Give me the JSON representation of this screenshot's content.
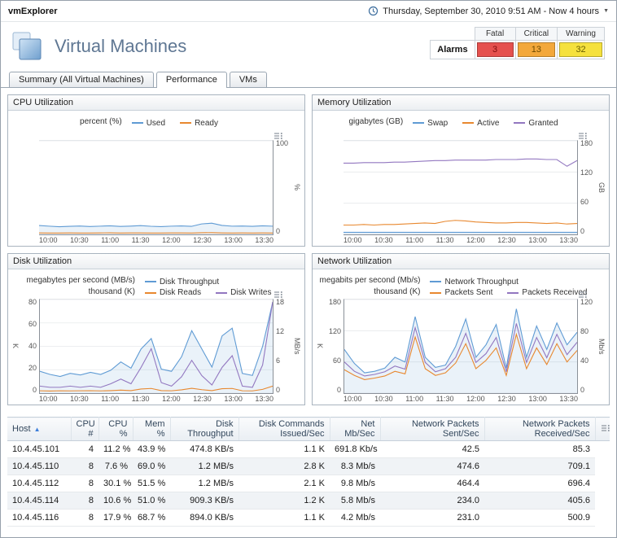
{
  "app": {
    "title": "vmExplorer"
  },
  "timebar": {
    "range_label": "Thursday, September 30, 2010 9:51 AM - Now 4 hours"
  },
  "page": {
    "title": "Virtual Machines"
  },
  "alarms": {
    "label": "Alarms",
    "columns": [
      {
        "name": "Fatal",
        "count": "3",
        "bg": "#e5514e",
        "fg": "#7e0d0d"
      },
      {
        "name": "Critical",
        "count": "13",
        "bg": "#f3a83b",
        "fg": "#6d4a00"
      },
      {
        "name": "Warning",
        "count": "32",
        "bg": "#f5e13d",
        "fg": "#6b6000"
      }
    ]
  },
  "tabs": [
    {
      "label": "Summary (All Virtual Machines)",
      "active": false
    },
    {
      "label": "Performance",
      "active": true
    },
    {
      "label": "VMs",
      "active": false
    }
  ],
  "chart_data": [
    {
      "type": "line",
      "title": "CPU Utilization",
      "legend_rows": [
        {
          "unit": "percent (%)",
          "entries": [
            {
              "label": "Used",
              "color": "#5f9bd4"
            },
            {
              "label": "Ready",
              "color": "#e8882f"
            }
          ]
        }
      ],
      "x_ticks": [
        "10:00",
        "10:30",
        "11:00",
        "11:30",
        "12:00",
        "12:30",
        "13:00",
        "13:30"
      ],
      "axes": {
        "right": {
          "label": "%",
          "range": [
            0,
            100
          ],
          "ticks": [
            0,
            100
          ]
        }
      },
      "series": [
        {
          "name": "Used",
          "color": "#5f9bd4",
          "axis": "right",
          "fill": true,
          "values": [
            9.5,
            8.8,
            8.2,
            8.6,
            9.0,
            8.4,
            8.8,
            9.2,
            8.5,
            8.9,
            9.4,
            8.7,
            8.3,
            8.8,
            9.1,
            8.6,
            11.2,
            12.0,
            9.6,
            8.8,
            9.0,
            8.6,
            9.2,
            8.8
          ]
        },
        {
          "name": "Ready",
          "color": "#e8882f",
          "axis": "right",
          "values": [
            1.6,
            1.5,
            1.5,
            1.6,
            1.5,
            1.5,
            1.6,
            1.7,
            1.5,
            1.6,
            1.6,
            1.5,
            1.5,
            1.6,
            1.6,
            1.5,
            1.8,
            1.9,
            1.6,
            1.5,
            1.6,
            1.5,
            1.6,
            1.5
          ]
        }
      ]
    },
    {
      "type": "line",
      "title": "Memory Utilization",
      "legend_rows": [
        {
          "unit": "gigabytes (GB)",
          "entries": [
            {
              "label": "Swap",
              "color": "#5f9bd4"
            },
            {
              "label": "Active",
              "color": "#e8882f"
            },
            {
              "label": "Granted",
              "color": "#9277c0"
            }
          ]
        }
      ],
      "x_ticks": [
        "10:00",
        "10:30",
        "11:00",
        "11:30",
        "12:00",
        "12:30",
        "13:00",
        "13:30"
      ],
      "axes": {
        "right": {
          "label": "GB",
          "range": [
            0,
            180
          ],
          "ticks": [
            0,
            60,
            120,
            180
          ]
        }
      },
      "series": [
        {
          "name": "Swap",
          "color": "#5f9bd4",
          "axis": "right",
          "fill": true,
          "values": [
            4,
            4,
            4,
            4,
            4,
            4,
            4,
            4,
            4,
            4,
            4,
            4,
            4,
            4,
            4,
            4,
            4,
            4,
            4,
            4,
            4,
            4,
            4,
            4
          ]
        },
        {
          "name": "Active",
          "color": "#e8882f",
          "axis": "right",
          "values": [
            18,
            18,
            19,
            18,
            19,
            19,
            20,
            21,
            22,
            21,
            25,
            27,
            26,
            24,
            23,
            22,
            22,
            23,
            23,
            22,
            21,
            22,
            20,
            21
          ]
        },
        {
          "name": "Granted",
          "color": "#9277c0",
          "axis": "right",
          "values": [
            137,
            137,
            138,
            138,
            138,
            139,
            139,
            140,
            141,
            142,
            142,
            143,
            143,
            143,
            143,
            144,
            144,
            144,
            145,
            145,
            144,
            144,
            131,
            142
          ]
        }
      ]
    },
    {
      "type": "line",
      "title": "Disk Utilization",
      "legend_rows": [
        {
          "unit": "megabytes per second (MB/s)",
          "entries": [
            {
              "label": "Disk Throughput",
              "color": "#5f9bd4"
            }
          ]
        },
        {
          "unit": "thousand (K)",
          "entries": [
            {
              "label": "Disk Reads",
              "color": "#e8882f"
            },
            {
              "label": "Disk Writes",
              "color": "#9277c0"
            }
          ]
        }
      ],
      "x_ticks": [
        "10:00",
        "10:30",
        "11:00",
        "11:30",
        "12:00",
        "12:30",
        "13:00",
        "13:30"
      ],
      "axes": {
        "left": {
          "label": "K",
          "range": [
            0,
            80
          ],
          "ticks": [
            0,
            20,
            40,
            60,
            80
          ]
        },
        "right": {
          "label": "MB/s",
          "range": [
            0,
            18
          ],
          "ticks": [
            0,
            6,
            12,
            18
          ]
        }
      },
      "series": [
        {
          "name": "Disk Throughput",
          "color": "#5f9bd4",
          "axis": "right",
          "fill": true,
          "values": [
            4.2,
            3.6,
            3.2,
            3.8,
            3.5,
            4.0,
            3.6,
            4.4,
            6.0,
            4.8,
            8.5,
            10.5,
            4.6,
            4.2,
            7.0,
            12.0,
            8.5,
            5.0,
            11.0,
            12.5,
            3.8,
            3.4,
            9.0,
            17.5
          ]
        },
        {
          "name": "Disk Reads",
          "color": "#e8882f",
          "axis": "left",
          "values": [
            2.0,
            1.8,
            2.0,
            1.9,
            2.0,
            2.1,
            1.9,
            2.2,
            2.6,
            2.2,
            3.5,
            4.0,
            2.2,
            2.0,
            2.8,
            4.2,
            3.0,
            2.2,
            3.8,
            4.0,
            2.0,
            1.9,
            3.2,
            6.0
          ]
        },
        {
          "name": "Disk Writes",
          "color": "#9277c0",
          "axis": "left",
          "values": [
            6,
            5,
            5,
            6,
            5,
            6,
            5,
            8,
            12,
            8,
            22,
            38,
            9,
            6,
            14,
            28,
            15,
            7,
            22,
            32,
            6,
            5,
            24,
            78
          ]
        }
      ]
    },
    {
      "type": "line",
      "title": "Network Utilization",
      "legend_rows": [
        {
          "unit": "megabits per second (Mb/s)",
          "entries": [
            {
              "label": "Network Throughput",
              "color": "#5f9bd4"
            }
          ]
        },
        {
          "unit": "thousand (K)",
          "entries": [
            {
              "label": "Packets Sent",
              "color": "#e8882f"
            },
            {
              "label": "Packets Received",
              "color": "#9277c0"
            }
          ]
        }
      ],
      "x_ticks": [
        "10:00",
        "10:30",
        "11:00",
        "11:30",
        "12:00",
        "12:30",
        "13:00",
        "13:30"
      ],
      "axes": {
        "left": {
          "label": "K",
          "range": [
            0,
            180
          ],
          "ticks": [
            0,
            60,
            120,
            180
          ]
        },
        "right": {
          "label": "Mb/s",
          "range": [
            0,
            120
          ],
          "ticks": [
            0,
            40,
            80,
            120
          ]
        }
      },
      "series": [
        {
          "name": "Network Throughput",
          "color": "#5f9bd4",
          "axis": "right",
          "fill": true,
          "values": [
            56,
            38,
            26,
            28,
            32,
            46,
            40,
            98,
            46,
            33,
            36,
            60,
            95,
            46,
            62,
            88,
            32,
            108,
            46,
            86,
            56,
            90,
            62,
            78
          ]
        },
        {
          "name": "Packets Sent",
          "color": "#e8882f",
          "axis": "left",
          "values": [
            45,
            34,
            26,
            29,
            33,
            42,
            37,
            108,
            47,
            34,
            39,
            58,
            95,
            47,
            63,
            87,
            34,
            113,
            47,
            87,
            55,
            95,
            60,
            82
          ]
        },
        {
          "name": "Packets Received",
          "color": "#9277c0",
          "axis": "left",
          "values": [
            60,
            42,
            33,
            36,
            41,
            52,
            46,
            126,
            59,
            41,
            47,
            69,
            115,
            59,
            76,
            107,
            41,
            134,
            59,
            107,
            68,
            113,
            74,
            98
          ]
        }
      ]
    }
  ],
  "table": {
    "columns": [
      {
        "label": "Host",
        "align": "left",
        "sort": "asc"
      },
      {
        "label": "CPU #",
        "align": "right"
      },
      {
        "label": "CPU %",
        "align": "right"
      },
      {
        "label": "Mem %",
        "align": "right"
      },
      {
        "label": "Disk\nThroughput",
        "align": "right"
      },
      {
        "label": "Disk Commands\nIssued/Sec",
        "align": "right"
      },
      {
        "label": "Net Mb/Sec",
        "align": "right"
      },
      {
        "label": "Network Packets\nSent/Sec",
        "align": "right"
      },
      {
        "label": "Network Packets\nReceived/Sec",
        "align": "right"
      }
    ],
    "rows": [
      [
        "10.4.45.101",
        "4",
        "11.2 %",
        "43.9 %",
        "474.8 KB/s",
        "1.1 K",
        "691.8 Kb/s",
        "42.5",
        "85.3"
      ],
      [
        "10.4.45.110",
        "8",
        "7.6 %",
        "69.0 %",
        "1.2 MB/s",
        "2.8 K",
        "8.3 Mb/s",
        "474.6",
        "709.1"
      ],
      [
        "10.4.45.112",
        "8",
        "30.1 %",
        "51.5 %",
        "1.2 MB/s",
        "2.1 K",
        "9.8 Mb/s",
        "464.4",
        "696.4"
      ],
      [
        "10.4.45.114",
        "8",
        "10.6 %",
        "51.0 %",
        "909.3 KB/s",
        "1.2 K",
        "5.8 Mb/s",
        "234.0",
        "405.6"
      ],
      [
        "10.4.45.116",
        "8",
        "17.9 %",
        "68.7 %",
        "894.0 KB/s",
        "1.1 K",
        "4.2 Mb/s",
        "231.0",
        "500.9"
      ]
    ]
  }
}
